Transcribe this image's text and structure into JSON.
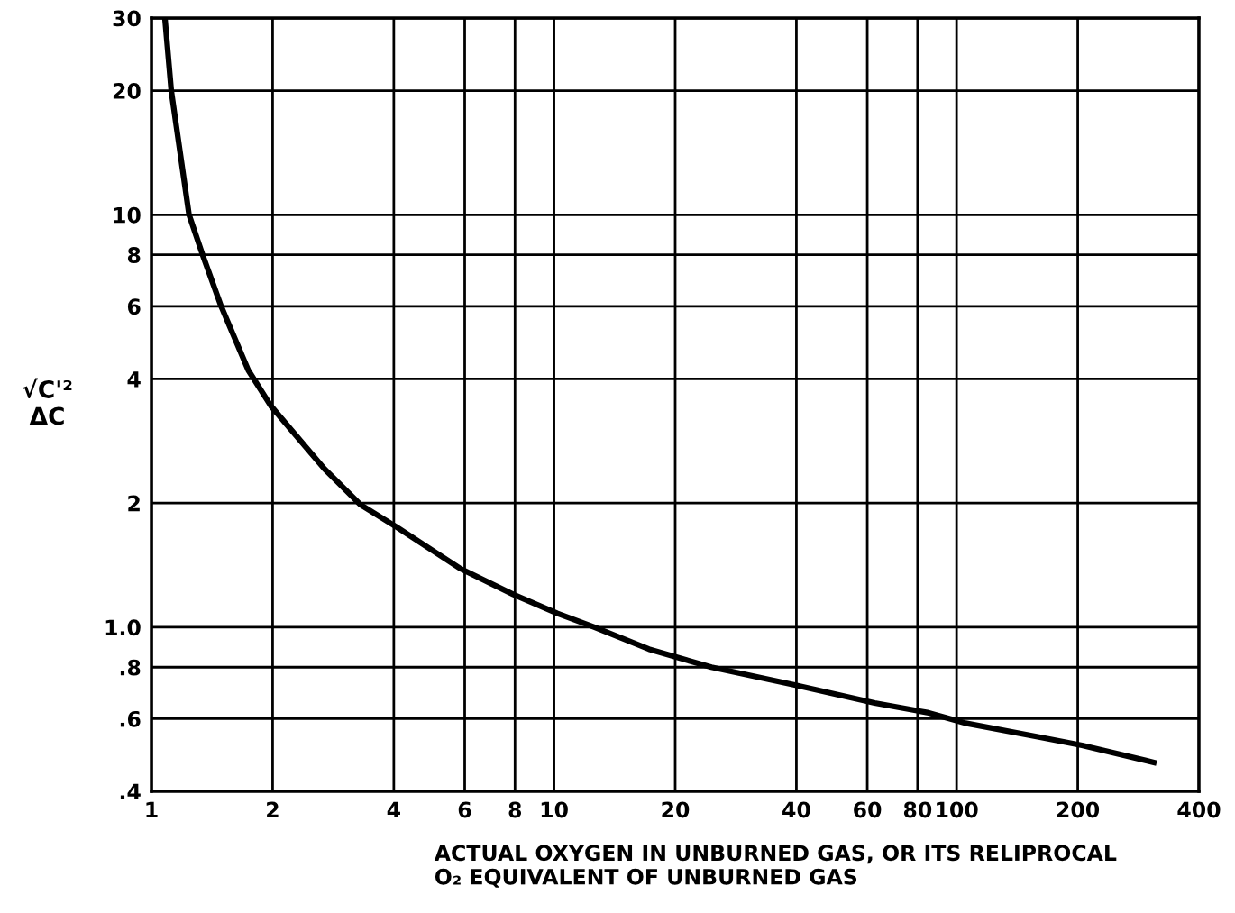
{
  "chart_data": {
    "type": "line",
    "xlabel": "ACTUAL OXYGEN IN UNBURNED GAS, OR ITS RELIPROCAL\nO₂ EQUIVALENT OF UNBURNED GAS",
    "ylabel": "√C'²\nΔC",
    "x": [
      1.08,
      1.12,
      1.24,
      1.34,
      1.49,
      1.74,
      1.98,
      2.69,
      3.31,
      4.06,
      5.83,
      7.93,
      10.2,
      12.6,
      17.2,
      24.6,
      39.4,
      62.6,
      85.3,
      104.6,
      158,
      205,
      309
    ],
    "series": [
      {
        "color": "#000000",
        "values": [
          30,
          20,
          10,
          8,
          6,
          4.2,
          3.44,
          2.42,
          1.98,
          1.75,
          1.39,
          1.2,
          1.08,
          1.0,
          0.885,
          0.8,
          0.725,
          0.655,
          0.62,
          0.586,
          0.543,
          0.517,
          0.47
        ]
      }
    ],
    "log": "xy",
    "xlim": [
      1,
      400
    ],
    "ylim": [
      0.4,
      30
    ],
    "xticks": [
      1,
      2,
      4,
      6,
      8,
      10,
      20,
      40,
      60,
      80,
      100,
      200,
      400
    ],
    "yticks": [
      {
        "value": 0.4,
        "label": ".4"
      },
      {
        "value": 0.6,
        "label": ".6"
      },
      {
        "value": 0.8,
        "label": ".8"
      },
      {
        "value": 1.0,
        "label": "1.0"
      },
      2,
      4,
      6,
      8,
      10,
      20,
      30
    ],
    "grid": true,
    "marker": "none",
    "line_style": "solid"
  }
}
